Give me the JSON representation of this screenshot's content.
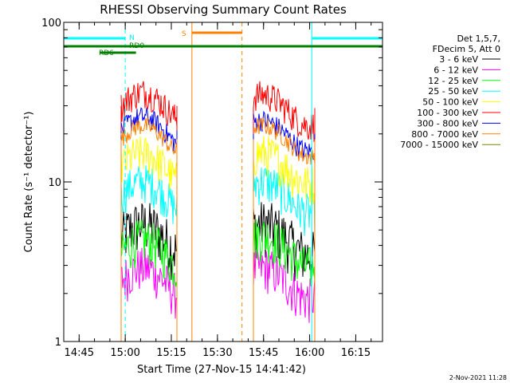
{
  "chart_data": {
    "type": "line",
    "title": "RHESSI Observing Summary Count Rates",
    "xlabel": "Start Time (27-Nov-15 14:41:42)",
    "ylabel": "Count Rate (s⁻¹ detector⁻¹)",
    "y_scale": "log",
    "ylim": [
      1,
      100
    ],
    "xlim_minutes": [
      -1.7,
      102
    ],
    "x_ticks": [
      {
        "label": "14:45",
        "minute": 3.3
      },
      {
        "label": "15:00",
        "minute": 18.3
      },
      {
        "label": "15:15",
        "minute": 33.3
      },
      {
        "label": "15:30",
        "minute": 48.3
      },
      {
        "label": "15:45",
        "minute": 63.3
      },
      {
        "label": "16:00",
        "minute": 78.3
      },
      {
        "label": "16:15",
        "minute": 93.3
      }
    ],
    "y_ticks": [
      {
        "label": "1",
        "value": 1
      },
      {
        "label": "10",
        "value": 10
      },
      {
        "label": "100",
        "value": 100
      }
    ],
    "legend": {
      "position": "right",
      "header": [
        "Det 1,5,7,",
        "FDecim 5, Att 0"
      ]
    },
    "series": [
      {
        "name": "3 - 6 keV",
        "color": "#000000",
        "segments": [
          [
            17,
            35,
            4.5,
            0.18
          ],
          [
            60,
            80,
            4.5,
            0.18
          ]
        ]
      },
      {
        "name": "6 - 12 keV",
        "color": "#ff00ff",
        "segments": [
          [
            17,
            35,
            2.4,
            0.15
          ],
          [
            60,
            80,
            2.4,
            0.15
          ]
        ]
      },
      {
        "name": "12 - 25 keV",
        "color": "#00ff00",
        "segments": [
          [
            17,
            35,
            3.6,
            0.15
          ],
          [
            60,
            80,
            3.8,
            0.15
          ]
        ]
      },
      {
        "name": "25 - 50 keV",
        "color": "#00ffff",
        "segments": [
          [
            17,
            35,
            8.3,
            0.13
          ],
          [
            60,
            80,
            8.3,
            0.14
          ]
        ]
      },
      {
        "name": "50 - 100 keV",
        "color": "#ffff00",
        "segments": [
          [
            17,
            35,
            12.5,
            0.13
          ],
          [
            60,
            80,
            12.5,
            0.14
          ]
        ]
      },
      {
        "name": "100 - 300 keV",
        "color": "#ff0000",
        "segments": [
          [
            17,
            35,
            30,
            0.1
          ],
          [
            60,
            80,
            29,
            0.1
          ]
        ]
      },
      {
        "name": "300 - 800 keV",
        "color": "#0000ff",
        "segments": [
          [
            17,
            35,
            21,
            0.07
          ],
          [
            60,
            80,
            20,
            0.07
          ]
        ]
      },
      {
        "name": "800 - 7000 keV",
        "color": "#ff8000",
        "segments": [
          [
            17,
            35,
            18.5,
            0.06
          ],
          [
            60,
            80,
            18.5,
            0.06
          ]
        ]
      },
      {
        "name": "7000 - 15000 keV",
        "color": "#808000",
        "segments": []
      }
    ],
    "annotations": [
      {
        "label": "N",
        "color": "#00ffff",
        "text": "N"
      },
      {
        "label": "RD0",
        "color": "#008000",
        "text": "RD0"
      },
      {
        "label": "RD6",
        "color": "#008000",
        "text": "RD6"
      },
      {
        "label": "S",
        "color": "#ff8000",
        "text": "S"
      }
    ],
    "night_intervals": [
      [
        -1.7,
        18.3
      ],
      [
        79.0,
        102
      ]
    ],
    "saa_interval": [
      40.0,
      56.3
    ],
    "rd_bar_minutes": [
      -1.7,
      102
    ],
    "rd6_bar_minutes": [
      10.0,
      21.8
    ],
    "timestamp": "2-Nov-2021 11:28"
  }
}
